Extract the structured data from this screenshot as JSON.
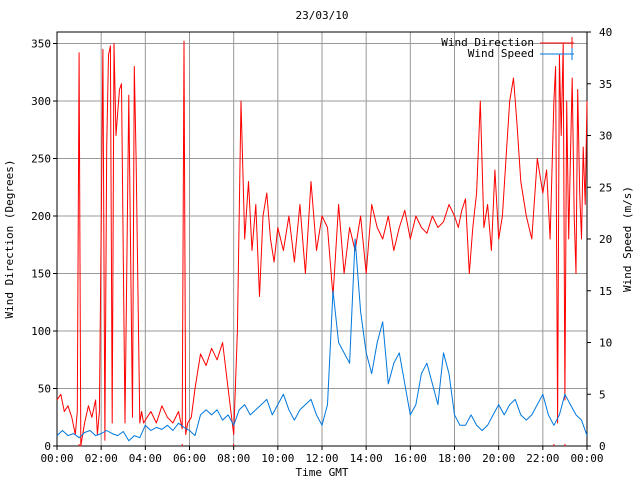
{
  "chart_data": {
    "type": "line",
    "title": "23/03/10",
    "xlabel": "Time GMT",
    "ylabel_left": "Wind Direction (Degrees)",
    "ylabel_right": "Wind Speed (m/s)",
    "grid": true,
    "legend_position": "top-right",
    "x_ticks": [
      "00:00",
      "02:00",
      "04:00",
      "06:00",
      "08:00",
      "10:00",
      "12:00",
      "14:00",
      "16:00",
      "18:00",
      "20:00",
      "22:00",
      "00:00"
    ],
    "y_left_ticks": [
      0,
      50,
      100,
      150,
      200,
      250,
      300,
      350
    ],
    "y_right_ticks": [
      0,
      5,
      10,
      15,
      20,
      25,
      30,
      35,
      40
    ],
    "xlim_hours": [
      0,
      24
    ],
    "ylim_left": [
      0,
      360
    ],
    "ylim_right": [
      0,
      40
    ],
    "series": [
      {
        "name": "Wind Direction",
        "axis": "left",
        "color": "#ff0000",
        "x": [
          0,
          0.17,
          0.33,
          0.5,
          0.67,
          0.83,
          0.92,
          1.0,
          1.08,
          1.25,
          1.42,
          1.58,
          1.75,
          1.83,
          1.92,
          2.08,
          2.17,
          2.25,
          2.33,
          2.42,
          2.5,
          2.58,
          2.67,
          2.75,
          2.83,
          2.92,
          3.08,
          3.25,
          3.42,
          3.5,
          3.58,
          3.75,
          3.83,
          3.92,
          4.08,
          4.25,
          4.5,
          4.75,
          5.0,
          5.25,
          5.5,
          5.67,
          5.75,
          5.83,
          5.92,
          6.08,
          6.25,
          6.5,
          6.75,
          7.0,
          7.25,
          7.5,
          7.75,
          8.0,
          8.17,
          8.33,
          8.5,
          8.67,
          8.83,
          9.0,
          9.17,
          9.33,
          9.5,
          9.67,
          9.83,
          10.0,
          10.25,
          10.5,
          10.75,
          11.0,
          11.25,
          11.5,
          11.75,
          12.0,
          12.25,
          12.5,
          12.75,
          13.0,
          13.25,
          13.5,
          13.75,
          14.0,
          14.25,
          14.5,
          14.75,
          15.0,
          15.25,
          15.5,
          15.75,
          16.0,
          16.25,
          16.5,
          16.75,
          17.0,
          17.25,
          17.5,
          17.75,
          18.0,
          18.17,
          18.33,
          18.5,
          18.67,
          18.83,
          19.0,
          19.17,
          19.33,
          19.5,
          19.67,
          19.83,
          20.0,
          20.17,
          20.33,
          20.5,
          20.67,
          20.83,
          21.0,
          21.25,
          21.5,
          21.75,
          22.0,
          22.17,
          22.33,
          22.5,
          22.58,
          22.67,
          22.75,
          22.83,
          22.92,
          23.0,
          23.08,
          23.17,
          23.25,
          23.33,
          23.42,
          23.5,
          23.58,
          23.67,
          23.75,
          23.83,
          23.92,
          24.0
        ],
        "values": [
          40,
          45,
          30,
          35,
          25,
          10,
          30,
          342,
          0,
          20,
          35,
          25,
          40,
          10,
          30,
          345,
          5,
          260,
          340,
          348,
          20,
          350,
          270,
          290,
          310,
          315,
          20,
          305,
          25,
          330,
          250,
          20,
          30,
          20,
          25,
          30,
          20,
          35,
          25,
          20,
          30,
          15,
          352,
          10,
          20,
          25,
          50,
          80,
          70,
          85,
          75,
          90,
          50,
          10,
          100,
          300,
          180,
          230,
          170,
          210,
          130,
          200,
          220,
          180,
          160,
          190,
          170,
          200,
          160,
          210,
          150,
          230,
          170,
          200,
          190,
          130,
          210,
          150,
          190,
          170,
          200,
          150,
          210,
          190,
          180,
          200,
          170,
          190,
          205,
          180,
          200,
          190,
          185,
          200,
          190,
          195,
          210,
          200,
          190,
          205,
          215,
          150,
          190,
          220,
          300,
          190,
          210,
          170,
          240,
          180,
          200,
          250,
          300,
          320,
          280,
          230,
          200,
          180,
          250,
          220,
          240,
          180,
          300,
          330,
          20,
          340,
          270,
          350,
          40,
          300,
          180,
          250,
          320,
          200,
          150,
          310,
          220,
          180,
          260,
          210,
          300
        ],
        "dropouts": [
          1.0,
          5.67,
          8.0,
          22.5,
          23.0
        ]
      },
      {
        "name": "Wind Speed",
        "axis": "right",
        "color": "#0077dd",
        "x": [
          0,
          0.25,
          0.5,
          0.75,
          1.0,
          1.25,
          1.5,
          1.75,
          2.0,
          2.25,
          2.5,
          2.75,
          3.0,
          3.25,
          3.5,
          3.75,
          4.0,
          4.25,
          4.5,
          4.75,
          5.0,
          5.25,
          5.5,
          5.75,
          6.0,
          6.25,
          6.5,
          6.75,
          7.0,
          7.25,
          7.5,
          7.75,
          8.0,
          8.25,
          8.5,
          8.75,
          9.0,
          9.25,
          9.5,
          9.75,
          10.0,
          10.25,
          10.5,
          10.75,
          11.0,
          11.25,
          11.5,
          11.75,
          12.0,
          12.25,
          12.5,
          12.75,
          13.0,
          13.25,
          13.5,
          13.75,
          14.0,
          14.25,
          14.5,
          14.75,
          15.0,
          15.25,
          15.5,
          15.75,
          16.0,
          16.25,
          16.5,
          16.75,
          17.0,
          17.25,
          17.5,
          17.75,
          18.0,
          18.25,
          18.5,
          18.75,
          19.0,
          19.25,
          19.5,
          19.75,
          20.0,
          20.25,
          20.5,
          20.75,
          21.0,
          21.25,
          21.5,
          21.75,
          22.0,
          22.25,
          22.5,
          22.75,
          23.0,
          23.25,
          23.5,
          23.75,
          24.0
        ],
        "values": [
          1,
          1.5,
          1,
          1.2,
          0.8,
          1.3,
          1.5,
          1,
          1.2,
          1.5,
          1.2,
          1,
          1.4,
          0.5,
          1,
          0.8,
          2,
          1.5,
          1.8,
          1.6,
          2,
          1.5,
          2.2,
          1.8,
          1.5,
          1,
          3,
          3.5,
          3,
          3.5,
          2.5,
          3,
          2,
          3.5,
          4,
          3,
          3.5,
          4,
          4.5,
          3,
          4,
          5,
          3.5,
          2.5,
          3.5,
          4,
          4.5,
          3,
          2,
          4,
          15,
          10,
          9,
          8,
          20,
          13,
          9,
          7,
          10,
          12,
          6,
          8,
          9,
          6,
          3,
          4,
          7,
          8,
          6,
          4,
          9,
          7,
          3,
          2,
          2,
          3,
          2,
          1.5,
          2,
          3,
          4,
          3,
          4,
          4.5,
          3,
          2.5,
          3,
          4,
          5,
          3,
          2,
          3,
          5,
          4,
          3,
          2.5,
          1
        ]
      }
    ]
  }
}
